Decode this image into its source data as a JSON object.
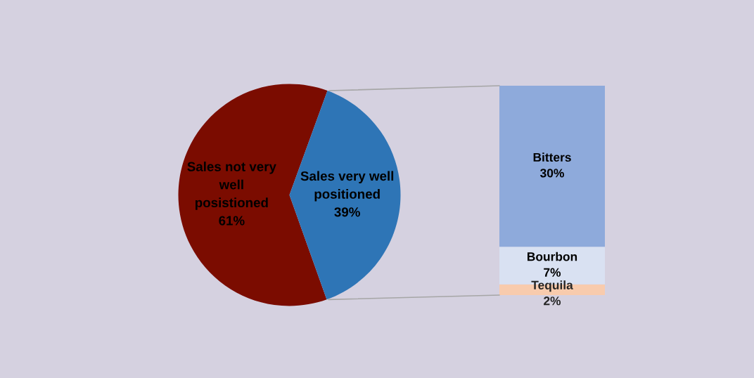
{
  "chart_data": [
    {
      "type": "pie",
      "categories": [
        "Sales not very well posistioned",
        "Sales very well positioned"
      ],
      "values": [
        61,
        39
      ],
      "value_labels": [
        "61%",
        "39%"
      ],
      "colors": [
        "#7b0c00",
        "#2e75b6"
      ]
    },
    {
      "type": "bar",
      "stacked": true,
      "categories": [
        null
      ],
      "series": [
        {
          "name": "Tequila",
          "color": "#f8cbad",
          "values": [
            2
          ],
          "value_labels": [
            "2%"
          ]
        },
        {
          "name": "Bourbon",
          "color": "#d9e1f2",
          "values": [
            7
          ],
          "value_labels": [
            "7%"
          ]
        },
        {
          "name": "Bitters",
          "color": "#8eaadb",
          "values": [
            30
          ],
          "value_labels": [
            "30%"
          ]
        }
      ]
    }
  ]
}
